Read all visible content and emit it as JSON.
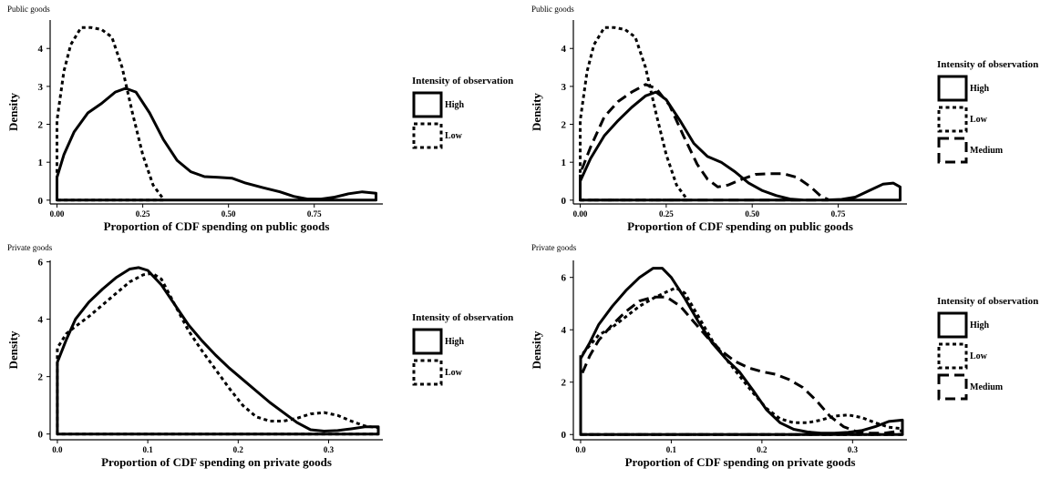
{
  "chart_data": [
    {
      "type": "area",
      "title": "Public goods",
      "xlabel": "Proportion of CDF spending on public goods",
      "ylabel": "Density",
      "xlim": [
        -0.02,
        0.95
      ],
      "ylim": [
        -0.1,
        4.75
      ],
      "xticks": [
        0.0,
        0.25,
        0.5,
        0.75
      ],
      "xtick_labels": [
        "0.00",
        "0.25",
        "0.50",
        "0.75"
      ],
      "yticks": [
        0,
        1,
        2,
        3,
        4
      ],
      "legend": {
        "title": "Intensity of observation",
        "position": "right"
      },
      "series": [
        {
          "name": "High",
          "style": "solid",
          "x_max": 0.93,
          "points": [
            [
              0,
              0.6
            ],
            [
              0.02,
              1.2
            ],
            [
              0.05,
              1.8
            ],
            [
              0.09,
              2.3
            ],
            [
              0.13,
              2.55
            ],
            [
              0.17,
              2.85
            ],
            [
              0.2,
              2.95
            ],
            [
              0.23,
              2.85
            ],
            [
              0.27,
              2.3
            ],
            [
              0.31,
              1.6
            ],
            [
              0.35,
              1.05
            ],
            [
              0.39,
              0.75
            ],
            [
              0.43,
              0.62
            ],
            [
              0.47,
              0.6
            ],
            [
              0.51,
              0.58
            ],
            [
              0.55,
              0.45
            ],
            [
              0.6,
              0.33
            ],
            [
              0.65,
              0.22
            ],
            [
              0.69,
              0.1
            ],
            [
              0.73,
              0.03
            ],
            [
              0.77,
              0.03
            ],
            [
              0.81,
              0.08
            ],
            [
              0.85,
              0.17
            ],
            [
              0.89,
              0.22
            ],
            [
              0.93,
              0.18
            ]
          ]
        },
        {
          "name": "Low",
          "style": "dotted",
          "x_max": 0.31,
          "points": [
            [
              0,
              2.1
            ],
            [
              0.02,
              3.4
            ],
            [
              0.04,
              4.1
            ],
            [
              0.07,
              4.55
            ],
            [
              0.1,
              4.55
            ],
            [
              0.13,
              4.5
            ],
            [
              0.16,
              4.3
            ],
            [
              0.19,
              3.5
            ],
            [
              0.22,
              2.3
            ],
            [
              0.25,
              1.2
            ],
            [
              0.28,
              0.4
            ],
            [
              0.31,
              0.03
            ]
          ]
        }
      ]
    },
    {
      "type": "area",
      "title": "Public goods",
      "xlabel": "Proportion of CDF spending on public goods",
      "ylabel": "Density",
      "xlim": [
        -0.02,
        0.95
      ],
      "ylim": [
        -0.1,
        4.75
      ],
      "xticks": [
        0.0,
        0.25,
        0.5,
        0.75
      ],
      "xtick_labels": [
        "0.00",
        "0.25",
        "0.50",
        "0.75"
      ],
      "yticks": [
        0,
        1,
        2,
        3,
        4
      ],
      "legend": {
        "title": "Intensity of observation",
        "position": "right"
      },
      "series": [
        {
          "name": "High",
          "style": "solid",
          "x_max": 0.93,
          "points": [
            [
              0,
              0.5
            ],
            [
              0.03,
              1.1
            ],
            [
              0.07,
              1.7
            ],
            [
              0.11,
              2.1
            ],
            [
              0.15,
              2.45
            ],
            [
              0.19,
              2.75
            ],
            [
              0.22,
              2.85
            ],
            [
              0.25,
              2.65
            ],
            [
              0.29,
              2.1
            ],
            [
              0.33,
              1.5
            ],
            [
              0.37,
              1.15
            ],
            [
              0.41,
              1.0
            ],
            [
              0.45,
              0.75
            ],
            [
              0.49,
              0.45
            ],
            [
              0.53,
              0.25
            ],
            [
              0.57,
              0.12
            ],
            [
              0.61,
              0.03
            ],
            [
              0.65,
              0.0
            ],
            [
              0.71,
              0.0
            ],
            [
              0.76,
              0.02
            ],
            [
              0.8,
              0.08
            ],
            [
              0.84,
              0.25
            ],
            [
              0.88,
              0.42
            ],
            [
              0.91,
              0.45
            ],
            [
              0.93,
              0.35
            ]
          ]
        },
        {
          "name": "Low",
          "style": "dotted",
          "x_max": 0.31,
          "points": [
            [
              0,
              2.1
            ],
            [
              0.02,
              3.4
            ],
            [
              0.04,
              4.1
            ],
            [
              0.07,
              4.55
            ],
            [
              0.1,
              4.55
            ],
            [
              0.13,
              4.5
            ],
            [
              0.16,
              4.3
            ],
            [
              0.19,
              3.5
            ],
            [
              0.22,
              2.3
            ],
            [
              0.25,
              1.2
            ],
            [
              0.28,
              0.4
            ],
            [
              0.31,
              0.03
            ]
          ]
        },
        {
          "name": "Medium",
          "style": "dashed",
          "x_max": 0.72,
          "points": [
            [
              0,
              0.7
            ],
            [
              0.03,
              1.4
            ],
            [
              0.07,
              2.2
            ],
            [
              0.11,
              2.6
            ],
            [
              0.15,
              2.85
            ],
            [
              0.19,
              3.05
            ],
            [
              0.22,
              2.95
            ],
            [
              0.26,
              2.5
            ],
            [
              0.3,
              1.7
            ],
            [
              0.34,
              0.95
            ],
            [
              0.37,
              0.55
            ],
            [
              0.4,
              0.35
            ],
            [
              0.43,
              0.4
            ],
            [
              0.47,
              0.55
            ],
            [
              0.51,
              0.68
            ],
            [
              0.55,
              0.7
            ],
            [
              0.59,
              0.7
            ],
            [
              0.63,
              0.6
            ],
            [
              0.67,
              0.35
            ],
            [
              0.7,
              0.1
            ],
            [
              0.72,
              0.02
            ]
          ]
        }
      ]
    },
    {
      "type": "area",
      "title": "Private goods",
      "xlabel": "Proportion of CDF spending on private goods",
      "ylabel": "Density",
      "xlim": [
        -0.008,
        0.36
      ],
      "ylim": [
        -0.2,
        6.05
      ],
      "xticks": [
        0.0,
        0.1,
        0.2,
        0.3
      ],
      "xtick_labels": [
        "0.0",
        "0.1",
        "0.2",
        "0.3"
      ],
      "yticks": [
        0,
        2,
        4,
        6
      ],
      "legend": {
        "title": "Intensity of observation",
        "position": "right"
      },
      "series": [
        {
          "name": "High",
          "style": "solid",
          "x_max": 0.355,
          "points": [
            [
              0,
              2.5
            ],
            [
              0.01,
              3.3
            ],
            [
              0.02,
              4.0
            ],
            [
              0.035,
              4.6
            ],
            [
              0.05,
              5.05
            ],
            [
              0.065,
              5.45
            ],
            [
              0.08,
              5.75
            ],
            [
              0.09,
              5.8
            ],
            [
              0.1,
              5.7
            ],
            [
              0.115,
              5.2
            ],
            [
              0.13,
              4.5
            ],
            [
              0.145,
              3.8
            ],
            [
              0.16,
              3.25
            ],
            [
              0.175,
              2.75
            ],
            [
              0.19,
              2.3
            ],
            [
              0.205,
              1.9
            ],
            [
              0.22,
              1.5
            ],
            [
              0.235,
              1.1
            ],
            [
              0.25,
              0.75
            ],
            [
              0.265,
              0.4
            ],
            [
              0.28,
              0.15
            ],
            [
              0.295,
              0.1
            ],
            [
              0.31,
              0.12
            ],
            [
              0.325,
              0.18
            ],
            [
              0.34,
              0.25
            ],
            [
              0.355,
              0.25
            ]
          ]
        },
        {
          "name": "Low",
          "style": "dotted",
          "x_max": 0.355,
          "points": [
            [
              0,
              3.0
            ],
            [
              0.01,
              3.5
            ],
            [
              0.02,
              3.75
            ],
            [
              0.035,
              4.1
            ],
            [
              0.05,
              4.5
            ],
            [
              0.065,
              4.9
            ],
            [
              0.08,
              5.3
            ],
            [
              0.095,
              5.55
            ],
            [
              0.105,
              5.6
            ],
            [
              0.115,
              5.4
            ],
            [
              0.13,
              4.5
            ],
            [
              0.145,
              3.6
            ],
            [
              0.16,
              2.9
            ],
            [
              0.175,
              2.25
            ],
            [
              0.19,
              1.6
            ],
            [
              0.205,
              1.0
            ],
            [
              0.22,
              0.6
            ],
            [
              0.235,
              0.45
            ],
            [
              0.25,
              0.45
            ],
            [
              0.265,
              0.55
            ],
            [
              0.28,
              0.7
            ],
            [
              0.295,
              0.75
            ],
            [
              0.31,
              0.65
            ],
            [
              0.325,
              0.45
            ],
            [
              0.34,
              0.28
            ],
            [
              0.355,
              0.22
            ]
          ]
        }
      ]
    },
    {
      "type": "area",
      "title": "Private goods",
      "xlabel": "Proportion of CDF spending on private goods",
      "ylabel": "Density",
      "xlim": [
        -0.008,
        0.36
      ],
      "ylim": [
        -0.2,
        6.65
      ],
      "xticks": [
        0.0,
        0.1,
        0.2,
        0.3
      ],
      "xtick_labels": [
        "0.0",
        "0.1",
        "0.2",
        "0.3"
      ],
      "yticks": [
        0,
        2,
        4,
        6
      ],
      "legend": {
        "title": "Intensity of observation",
        "position": "right"
      },
      "series": [
        {
          "name": "High",
          "style": "solid",
          "x_max": 0.355,
          "points": [
            [
              0,
              2.9
            ],
            [
              0.01,
              3.5
            ],
            [
              0.02,
              4.2
            ],
            [
              0.035,
              4.9
            ],
            [
              0.05,
              5.5
            ],
            [
              0.065,
              6.0
            ],
            [
              0.08,
              6.35
            ],
            [
              0.09,
              6.35
            ],
            [
              0.1,
              6.0
            ],
            [
              0.115,
              5.2
            ],
            [
              0.13,
              4.3
            ],
            [
              0.145,
              3.5
            ],
            [
              0.16,
              2.9
            ],
            [
              0.175,
              2.4
            ],
            [
              0.19,
              1.7
            ],
            [
              0.205,
              0.95
            ],
            [
              0.22,
              0.45
            ],
            [
              0.235,
              0.2
            ],
            [
              0.25,
              0.1
            ],
            [
              0.265,
              0.05
            ],
            [
              0.28,
              0.05
            ],
            [
              0.295,
              0.08
            ],
            [
              0.31,
              0.15
            ],
            [
              0.325,
              0.3
            ],
            [
              0.34,
              0.5
            ],
            [
              0.355,
              0.55
            ]
          ]
        },
        {
          "name": "Low",
          "style": "dotted",
          "x_max": 0.355,
          "points": [
            [
              0,
              3.0
            ],
            [
              0.01,
              3.4
            ],
            [
              0.02,
              3.8
            ],
            [
              0.035,
              4.1
            ],
            [
              0.05,
              4.5
            ],
            [
              0.065,
              4.9
            ],
            [
              0.08,
              5.2
            ],
            [
              0.095,
              5.45
            ],
            [
              0.105,
              5.6
            ],
            [
              0.115,
              5.4
            ],
            [
              0.13,
              4.5
            ],
            [
              0.145,
              3.6
            ],
            [
              0.16,
              2.9
            ],
            [
              0.175,
              2.25
            ],
            [
              0.19,
              1.6
            ],
            [
              0.205,
              1.0
            ],
            [
              0.22,
              0.6
            ],
            [
              0.235,
              0.45
            ],
            [
              0.25,
              0.45
            ],
            [
              0.265,
              0.55
            ],
            [
              0.28,
              0.7
            ],
            [
              0.295,
              0.75
            ],
            [
              0.31,
              0.65
            ],
            [
              0.325,
              0.45
            ],
            [
              0.34,
              0.28
            ],
            [
              0.355,
              0.22
            ]
          ]
        },
        {
          "name": "Medium",
          "style": "dashed",
          "x_max": 0.355,
          "points": [
            [
              0,
              2.2
            ],
            [
              0.01,
              3.0
            ],
            [
              0.02,
              3.6
            ],
            [
              0.035,
              4.2
            ],
            [
              0.05,
              4.7
            ],
            [
              0.065,
              5.1
            ],
            [
              0.08,
              5.25
            ],
            [
              0.095,
              5.25
            ],
            [
              0.11,
              4.9
            ],
            [
              0.125,
              4.3
            ],
            [
              0.14,
              3.7
            ],
            [
              0.155,
              3.2
            ],
            [
              0.17,
              2.8
            ],
            [
              0.185,
              2.55
            ],
            [
              0.2,
              2.4
            ],
            [
              0.215,
              2.3
            ],
            [
              0.23,
              2.1
            ],
            [
              0.245,
              1.8
            ],
            [
              0.26,
              1.3
            ],
            [
              0.275,
              0.7
            ],
            [
              0.29,
              0.3
            ],
            [
              0.305,
              0.1
            ],
            [
              0.32,
              0.05
            ],
            [
              0.335,
              0.05
            ],
            [
              0.355,
              0.15
            ]
          ]
        }
      ]
    }
  ]
}
